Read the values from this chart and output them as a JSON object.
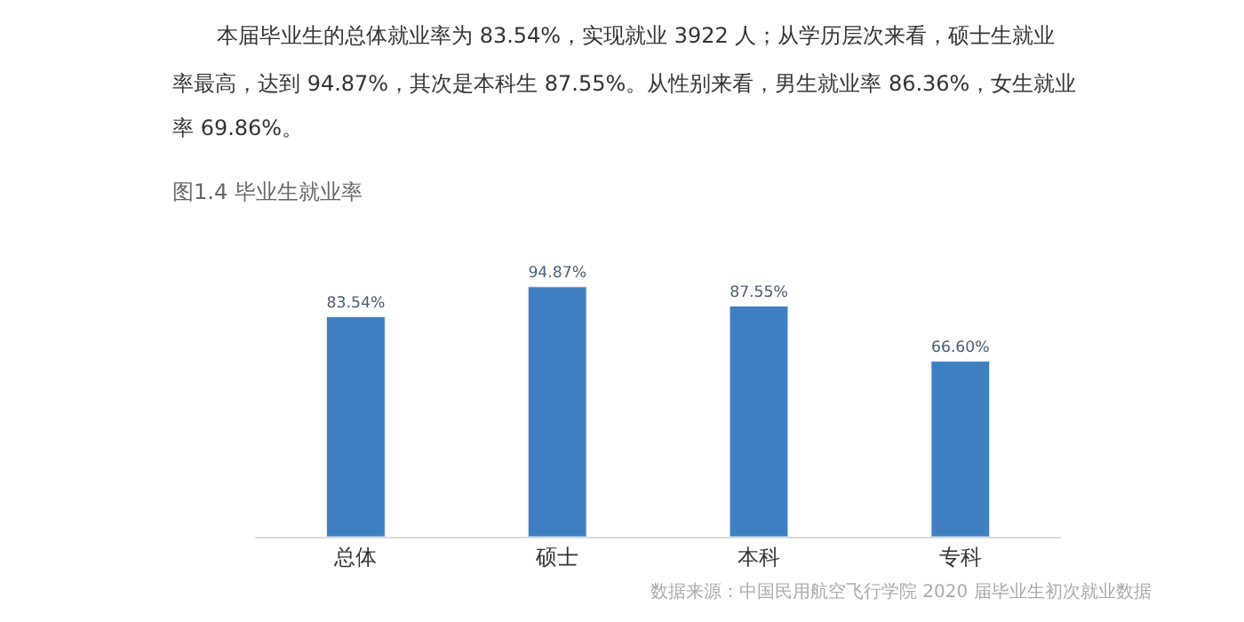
{
  "chart_data": {
    "type": "bar",
    "title": "图1.4 毕业生就业率",
    "categories": [
      "总体",
      "硕士",
      "本科",
      "专科"
    ],
    "values": [
      83.54,
      94.87,
      87.55,
      66.6
    ],
    "value_labels": [
      "83.54%",
      "94.87%",
      "87.55%",
      "66.60%"
    ],
    "color": "#3f7fc1",
    "annotations": [
      "本届毕业生的总体就业率为 83.54%，实现就业 3922 人；从学历层次来看，硕士生就业",
      "率最高，达到 94.87%，其次是本科生 87.55%。从性别来看，男生就业率 86.36%，女生就业",
      "率 69.86%。",
      "数据来源：中国民用航空飞行学院 2020 届毕业生初次就业数据"
    ],
    "legend": false
  }
}
